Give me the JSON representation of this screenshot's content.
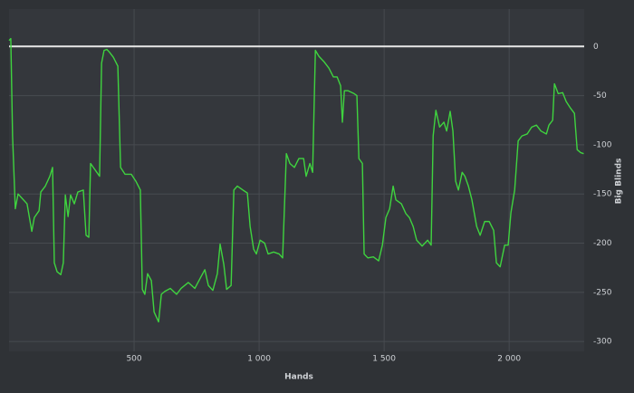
{
  "chart_data": {
    "type": "line",
    "x_label": "Hands",
    "y_label": "Big Blinds",
    "xlim": [
      0,
      2300
    ],
    "ylim": [
      -310,
      38
    ],
    "xticks": [
      500,
      {
        "value": 1000,
        "label": "1 000"
      },
      {
        "value": 1500,
        "label": "1 500"
      },
      {
        "value": 2000,
        "label": "2 000"
      }
    ],
    "yticks": [
      0,
      -50,
      -100,
      -150,
      -200,
      -250,
      -300
    ],
    "grid": true,
    "series": [
      {
        "color": "#3fd33f",
        "x": [
          0,
          7,
          14,
          25,
          36,
          54,
          72,
          91,
          101,
          120,
          127,
          145,
          163,
          174,
          181,
          192,
          207,
          217,
          225,
          236,
          246,
          261,
          275,
          297,
          308,
          319,
          326,
          337,
          351,
          362,
          370,
          380,
          391,
          402,
          417,
          435,
          446,
          464,
          489,
          507,
          525,
          533,
          543,
          554,
          569,
          580,
          598,
          609,
          623,
          645,
          670,
          688,
          717,
          743,
          768,
          783,
          797,
          815,
          833,
          844,
          859,
          870,
          888,
          899,
          913,
          935,
          953,
          964,
          978,
          989,
          1004,
          1022,
          1036,
          1058,
          1080,
          1094,
          1109,
          1123,
          1141,
          1159,
          1178,
          1188,
          1203,
          1214,
          1225,
          1239,
          1261,
          1279,
          1297,
          1312,
          1326,
          1333,
          1341,
          1355,
          1380,
          1391,
          1399,
          1413,
          1420,
          1435,
          1457,
          1478,
          1493,
          1507,
          1522,
          1536,
          1547,
          1569,
          1587,
          1601,
          1616,
          1630,
          1652,
          1674,
          1688,
          1696,
          1707,
          1722,
          1739,
          1750,
          1764,
          1775,
          1786,
          1797,
          1812,
          1823,
          1837,
          1851,
          1870,
          1884,
          1902,
          1920,
          1938,
          1949,
          1964,
          1982,
          1996,
          2007,
          2022,
          2036,
          2051,
          2072,
          2090,
          2109,
          2127,
          2149,
          2159,
          2174,
          2181,
          2196,
          2214,
          2228,
          2246,
          2261,
          2272,
          2286,
          2298
        ],
        "values": [
          6,
          8,
          -91,
          -165,
          -150,
          -155,
          -160,
          -188,
          -174,
          -167,
          -148,
          -142,
          -132,
          -123,
          -220,
          -229,
          -232,
          -220,
          -151,
          -173,
          -151,
          -160,
          -148,
          -146,
          -192,
          -194,
          -119,
          -123,
          -128,
          -132,
          -17,
          -4,
          -3,
          -6,
          -11,
          -20,
          -123,
          -130,
          -130,
          -137,
          -146,
          -247,
          -252,
          -231,
          -238,
          -270,
          -280,
          -252,
          -249,
          -246,
          -252,
          -246,
          -240,
          -246,
          -234,
          -227,
          -243,
          -248,
          -231,
          -201,
          -222,
          -247,
          -243,
          -146,
          -142,
          -146,
          -149,
          -183,
          -206,
          -211,
          -197,
          -200,
          -211,
          -209,
          -211,
          -215,
          -109,
          -119,
          -123,
          -114,
          -114,
          -132,
          -119,
          -128,
          -4,
          -10,
          -16,
          -22,
          -31,
          -31,
          -40,
          -77,
          -45,
          -45,
          -48,
          -50,
          -114,
          -119,
          -211,
          -215,
          -214,
          -218,
          -202,
          -174,
          -165,
          -142,
          -156,
          -160,
          -170,
          -174,
          -183,
          -197,
          -203,
          -197,
          -202,
          -91,
          -65,
          -82,
          -77,
          -86,
          -66,
          -86,
          -137,
          -146,
          -128,
          -132,
          -142,
          -156,
          -183,
          -192,
          -178,
          -178,
          -187,
          -220,
          -224,
          -202,
          -202,
          -169,
          -146,
          -96,
          -91,
          -89,
          -82,
          -80,
          -86,
          -89,
          -80,
          -75,
          -38,
          -48,
          -47,
          -56,
          -63,
          -68,
          -105,
          -108,
          -109
        ]
      }
    ]
  }
}
